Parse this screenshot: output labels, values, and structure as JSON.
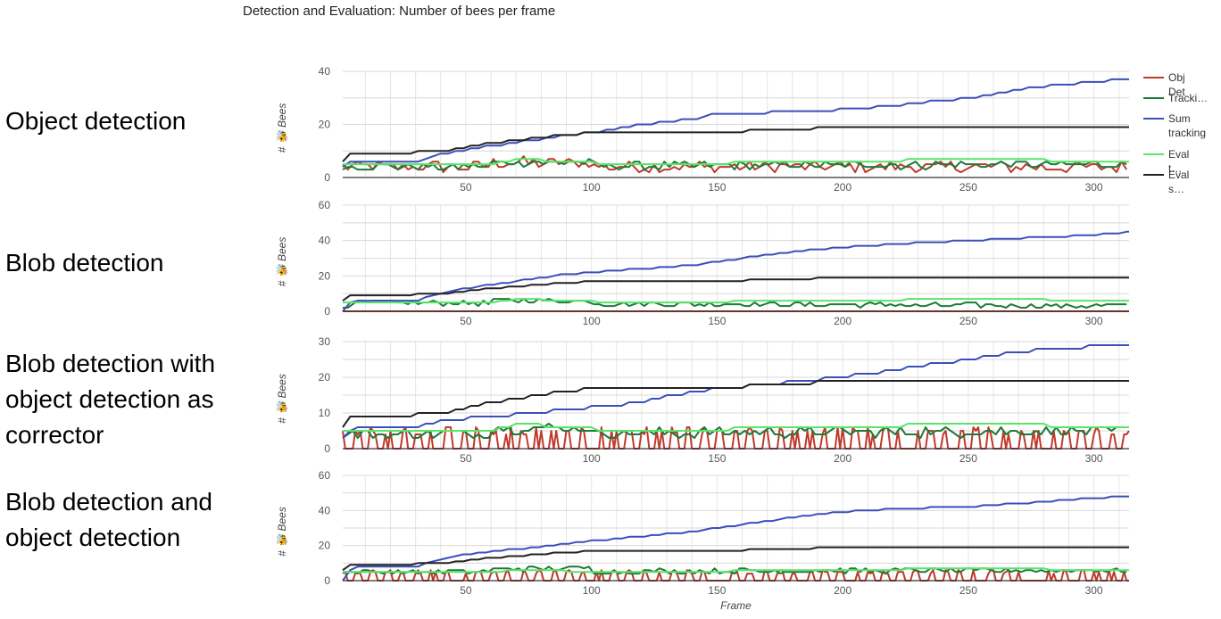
{
  "page_title": "Detection and Evaluation: Number of bees per frame",
  "row_labels": [
    "Object detection",
    "Blob detection",
    "Blob detection with object detection as corrector",
    "Blob detection and object detection"
  ],
  "colors": {
    "obj_det": "#c0392b",
    "tracking": "#1e7a3a",
    "sum_tracking": "#3b4fb8",
    "eval_t": "#5be36a",
    "eval_s": "#222222",
    "grid": "#e6e6e6",
    "axis": "#333333"
  },
  "legend": [
    "Obj Det",
    "Tracki…",
    "Sum tracking",
    "Eval t…",
    "Eval s…"
  ],
  "chart_data": [
    {
      "type": "line",
      "panel_label": "Object detection",
      "ylabel": "# 🐝 Bees",
      "xlabel": "",
      "ylim": [
        0,
        40
      ],
      "yticks": [
        0,
        20,
        40
      ],
      "xlim": [
        1,
        314
      ],
      "xticks": [
        50,
        100,
        150,
        200,
        250,
        300
      ],
      "grid": true,
      "series": [
        {
          "name": "Obj Det",
          "key": "obj_det",
          "pattern": "noisy",
          "points": [
            [
              1,
              4
            ],
            [
              314,
              4
            ]
          ]
        },
        {
          "name": "Tracki…",
          "key": "tracking",
          "pattern": "noisy_low",
          "points": [
            [
              1,
              4
            ],
            [
              314,
              5
            ]
          ]
        },
        {
          "name": "Sum tracking",
          "key": "sum_tracking",
          "points": [
            [
              1,
              4
            ],
            [
              5,
              6
            ],
            [
              30,
              6
            ],
            [
              40,
              9
            ],
            [
              75,
              14
            ],
            [
              100,
              17
            ],
            [
              120,
              20
            ],
            [
              140,
              22
            ],
            [
              150,
              24
            ],
            [
              190,
              25
            ],
            [
              220,
              27
            ],
            [
              250,
              30
            ],
            [
              270,
              33
            ],
            [
              285,
              35
            ],
            [
              300,
              36
            ],
            [
              314,
              37
            ]
          ]
        },
        {
          "name": "Eval t…",
          "key": "eval_t",
          "points": [
            [
              1,
              5
            ],
            [
              60,
              5
            ],
            [
              70,
              7
            ],
            [
              110,
              5
            ],
            [
              200,
              6
            ],
            [
              250,
              7
            ],
            [
              314,
              6
            ]
          ]
        },
        {
          "name": "Eval s…",
          "key": "eval_s",
          "points": [
            [
              1,
              6
            ],
            [
              2,
              9
            ],
            [
              20,
              9
            ],
            [
              40,
              10
            ],
            [
              60,
              13
            ],
            [
              80,
              15
            ],
            [
              100,
              17
            ],
            [
              150,
              17
            ],
            [
              175,
              18
            ],
            [
              200,
              19
            ],
            [
              314,
              19
            ]
          ]
        }
      ]
    },
    {
      "type": "line",
      "panel_label": "Blob detection",
      "ylabel": "# 🐝 Bees",
      "xlabel": "",
      "ylim": [
        0,
        60
      ],
      "yticks": [
        0,
        20,
        40,
        60
      ],
      "xlim": [
        1,
        314
      ],
      "xticks": [
        50,
        100,
        150,
        200,
        250,
        300
      ],
      "grid": true,
      "series": [
        {
          "name": "Obj Det",
          "key": "obj_det",
          "points": [
            [
              1,
              0
            ],
            [
              314,
              0
            ]
          ]
        },
        {
          "name": "Tracki…",
          "key": "tracking",
          "pattern": "noisy_low",
          "points": [
            [
              1,
              2
            ],
            [
              5,
              5
            ],
            [
              314,
              3
            ]
          ]
        },
        {
          "name": "Sum tracking",
          "key": "sum_tracking",
          "points": [
            [
              1,
              0
            ],
            [
              5,
              6
            ],
            [
              30,
              6
            ],
            [
              45,
              12
            ],
            [
              70,
              17
            ],
            [
              90,
              21
            ],
            [
              110,
              23
            ],
            [
              140,
              26
            ],
            [
              160,
              30
            ],
            [
              190,
              35
            ],
            [
              220,
              38
            ],
            [
              250,
              40
            ],
            [
              280,
              42
            ],
            [
              300,
              43
            ],
            [
              314,
              45
            ]
          ]
        },
        {
          "name": "Eval t…",
          "key": "eval_t",
          "points": [
            [
              1,
              5
            ],
            [
              60,
              5
            ],
            [
              70,
              7
            ],
            [
              110,
              5
            ],
            [
              200,
              6
            ],
            [
              250,
              7
            ],
            [
              314,
              6
            ]
          ]
        },
        {
          "name": "Eval s…",
          "key": "eval_s",
          "points": [
            [
              1,
              6
            ],
            [
              2,
              9
            ],
            [
              20,
              9
            ],
            [
              40,
              10
            ],
            [
              60,
              13
            ],
            [
              80,
              15
            ],
            [
              100,
              17
            ],
            [
              150,
              17
            ],
            [
              175,
              18
            ],
            [
              200,
              19
            ],
            [
              314,
              19
            ]
          ]
        }
      ]
    },
    {
      "type": "line",
      "panel_label": "Blob detection with object detection as corrector",
      "ylabel": "# 🐝 Bees",
      "xlabel": "",
      "ylim": [
        0,
        30
      ],
      "yticks": [
        0,
        10,
        20,
        30
      ],
      "xlim": [
        1,
        314
      ],
      "xticks": [
        50,
        100,
        150,
        200,
        250,
        300
      ],
      "grid": true,
      "series": [
        {
          "name": "Obj Det",
          "key": "obj_det",
          "pattern": "spikes",
          "points": [
            [
              1,
              0
            ],
            [
              314,
              0
            ]
          ]
        },
        {
          "name": "Tracki…",
          "key": "tracking",
          "pattern": "noisy_low",
          "points": [
            [
              1,
              4
            ],
            [
              314,
              5
            ]
          ]
        },
        {
          "name": "Sum tracking",
          "key": "sum_tracking",
          "points": [
            [
              1,
              3
            ],
            [
              5,
              6
            ],
            [
              30,
              6
            ],
            [
              40,
              8
            ],
            [
              60,
              9
            ],
            [
              90,
              11
            ],
            [
              110,
              12
            ],
            [
              140,
              16
            ],
            [
              170,
              18
            ],
            [
              200,
              20
            ],
            [
              230,
              23
            ],
            [
              260,
              26
            ],
            [
              280,
              28
            ],
            [
              314,
              29
            ]
          ]
        },
        {
          "name": "Eval t…",
          "key": "eval_t",
          "points": [
            [
              1,
              5
            ],
            [
              60,
              5
            ],
            [
              70,
              7
            ],
            [
              110,
              5
            ],
            [
              200,
              6
            ],
            [
              250,
              7
            ],
            [
              314,
              6
            ]
          ]
        },
        {
          "name": "Eval s…",
          "key": "eval_s",
          "points": [
            [
              1,
              6
            ],
            [
              2,
              9
            ],
            [
              20,
              9
            ],
            [
              40,
              10
            ],
            [
              60,
              13
            ],
            [
              80,
              15
            ],
            [
              100,
              17
            ],
            [
              150,
              17
            ],
            [
              175,
              18
            ],
            [
              200,
              19
            ],
            [
              314,
              19
            ]
          ]
        }
      ]
    },
    {
      "type": "line",
      "panel_label": "Blob detection and object detection",
      "ylabel": "# 🐝 Bees",
      "xlabel": "Frame",
      "ylim": [
        0,
        60
      ],
      "yticks": [
        0,
        20,
        40,
        60
      ],
      "xlim": [
        1,
        314
      ],
      "xticks": [
        50,
        100,
        150,
        200,
        250,
        300
      ],
      "grid": true,
      "series": [
        {
          "name": "Obj Det",
          "key": "obj_det",
          "pattern": "spikes",
          "points": [
            [
              1,
              0
            ],
            [
              314,
              0
            ]
          ]
        },
        {
          "name": "Tracki…",
          "key": "tracking",
          "pattern": "noisy_low",
          "points": [
            [
              1,
              5
            ],
            [
              314,
              6
            ]
          ]
        },
        {
          "name": "Sum tracking",
          "key": "sum_tracking",
          "points": [
            [
              1,
              0
            ],
            [
              5,
              8
            ],
            [
              30,
              8
            ],
            [
              45,
              14
            ],
            [
              70,
              18
            ],
            [
              90,
              21
            ],
            [
              110,
              24
            ],
            [
              140,
              28
            ],
            [
              160,
              32
            ],
            [
              190,
              38
            ],
            [
              220,
              41
            ],
            [
              250,
              42
            ],
            [
              280,
              45
            ],
            [
              300,
              47
            ],
            [
              314,
              48
            ]
          ]
        },
        {
          "name": "Eval t…",
          "key": "eval_t",
          "points": [
            [
              1,
              5
            ],
            [
              60,
              5
            ],
            [
              70,
              6
            ],
            [
              110,
              5
            ],
            [
              200,
              6
            ],
            [
              250,
              7
            ],
            [
              314,
              6
            ]
          ]
        },
        {
          "name": "Eval s…",
          "key": "eval_s",
          "points": [
            [
              1,
              6
            ],
            [
              2,
              9
            ],
            [
              20,
              9
            ],
            [
              40,
              10
            ],
            [
              60,
              13
            ],
            [
              80,
              15
            ],
            [
              100,
              17
            ],
            [
              150,
              17
            ],
            [
              175,
              18
            ],
            [
              200,
              19
            ],
            [
              314,
              19
            ]
          ]
        }
      ]
    }
  ]
}
